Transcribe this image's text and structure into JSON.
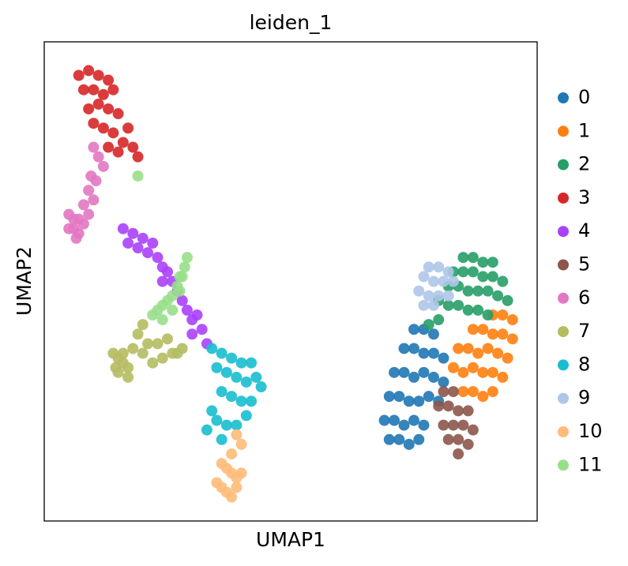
{
  "chart_data": {
    "type": "scatter",
    "title": "leiden_1",
    "x_label": "UMAP1",
    "y_label": "UMAP2",
    "xlim": [
      0,
      100
    ],
    "ylim": [
      0,
      100
    ],
    "series": [
      {
        "name": "0",
        "color": "#1f77b4",
        "x": [
          75,
          77,
          79,
          73,
          75,
          77,
          79,
          81,
          71,
          73,
          75,
          77,
          79,
          81,
          70,
          72,
          74,
          76,
          78,
          80,
          69,
          71,
          73,
          75,
          77,
          70,
          72,
          74,
          76
        ],
        "y": [
          40,
          40,
          39,
          36,
          36,
          35,
          35,
          34,
          31,
          31,
          30,
          31,
          30,
          29,
          26,
          26,
          25,
          25,
          26,
          25,
          21,
          21,
          20,
          21,
          20,
          17,
          17,
          16,
          17
        ]
      },
      {
        "name": "1",
        "color": "#ff7f0e",
        "x": [
          91,
          93,
          95,
          87,
          89,
          91,
          93,
          95,
          84,
          86,
          88,
          90,
          92,
          94,
          83,
          85,
          87,
          89,
          91,
          93,
          85,
          87,
          89,
          91
        ],
        "y": [
          43,
          43,
          42,
          40,
          40,
          39,
          39,
          38,
          36,
          36,
          35,
          36,
          35,
          34,
          32,
          31,
          32,
          31,
          31,
          30,
          27,
          27,
          26,
          27
        ]
      },
      {
        "name": "2",
        "color": "#279e68",
        "x": [
          85,
          87,
          89,
          91,
          83,
          85,
          87,
          89,
          91,
          93,
          82,
          84,
          86,
          88,
          90,
          92,
          94,
          80,
          82,
          84,
          86,
          88,
          90,
          78,
          80
        ],
        "y": [
          55,
          55,
          54,
          54,
          52,
          52,
          52,
          51,
          51,
          50,
          49,
          49,
          48,
          48,
          48,
          47,
          46,
          46,
          45,
          45,
          44,
          44,
          43,
          41,
          42
        ]
      },
      {
        "name": "3",
        "color": "#d62728",
        "x": [
          7,
          9,
          11,
          13,
          8,
          10,
          12,
          14,
          9,
          11,
          13,
          15,
          17,
          10,
          12,
          14,
          16,
          18,
          19,
          13,
          15
        ],
        "y": [
          93,
          94,
          93,
          92,
          90,
          90,
          89,
          90,
          86,
          87,
          86,
          85,
          82,
          83,
          82,
          81,
          79,
          78,
          76,
          78,
          77
        ]
      },
      {
        "name": "4",
        "color": "#aa40fc",
        "x": [
          16,
          18,
          20,
          22,
          17,
          19,
          21,
          23,
          24,
          25,
          26,
          27,
          24,
          28,
          29,
          30,
          31,
          32,
          30,
          33
        ],
        "y": [
          61,
          60,
          59,
          58,
          58,
          57,
          56,
          55,
          53,
          52,
          50,
          48,
          50,
          46,
          44,
          42,
          43,
          40,
          39,
          37
        ]
      },
      {
        "name": "5",
        "color": "#8c564b",
        "x": [
          81,
          83,
          80,
          82,
          84,
          86,
          81,
          83,
          85,
          87,
          82,
          84,
          86,
          84
        ],
        "y": [
          27,
          27,
          24,
          24,
          23,
          23,
          20,
          20,
          20,
          19,
          17,
          17,
          16,
          14
        ]
      },
      {
        "name": "6",
        "color": "#e377c2",
        "x": [
          10,
          11,
          12,
          9.5,
          10.5,
          9,
          10,
          8,
          9,
          5,
          6,
          7,
          8,
          5,
          6,
          7,
          6.5
        ],
        "y": [
          78,
          76,
          74,
          72,
          71,
          69,
          67,
          66,
          64,
          64,
          63,
          63,
          62,
          61,
          61,
          60,
          59
        ]
      },
      {
        "name": "7",
        "color": "#b5bd61",
        "x": [
          14,
          15,
          16,
          17,
          15,
          16,
          18,
          20,
          22,
          24,
          26,
          27,
          28,
          14.5,
          17,
          19,
          21,
          23,
          25,
          20
        ],
        "y": [
          35,
          34,
          33,
          32,
          31,
          35,
          36,
          35,
          33,
          34,
          35,
          35,
          36,
          32,
          30,
          39,
          37,
          37,
          38,
          41
        ]
      },
      {
        "name": "8",
        "color": "#17becf",
        "x": [
          34,
          36,
          38,
          40,
          42,
          43,
          35,
          37,
          39,
          41,
          44,
          36,
          38,
          40,
          42,
          34,
          35,
          37,
          39,
          41,
          33,
          36
        ],
        "y": [
          36,
          35,
          34,
          33,
          33,
          30,
          32,
          31,
          30,
          29,
          28,
          27,
          26,
          25,
          25,
          23,
          21,
          20,
          20,
          22,
          19,
          17
        ]
      },
      {
        "name": "9",
        "color": "#aec7e8",
        "x": [
          78,
          80,
          82,
          77,
          79,
          81,
          83,
          76,
          78,
          80,
          82,
          77,
          79
        ],
        "y": [
          53,
          53,
          52,
          51,
          50,
          50,
          50,
          48,
          47,
          47,
          47,
          45,
          45
        ]
      },
      {
        "name": "10",
        "color": "#ffbb78",
        "x": [
          39,
          40,
          38,
          36,
          37,
          38,
          39,
          40,
          35,
          36,
          37,
          38,
          39
        ],
        "y": [
          18,
          16,
          14,
          12,
          11,
          10,
          9,
          10,
          8,
          7,
          6,
          5,
          7
        ]
      },
      {
        "name": "11",
        "color": "#98df8a",
        "x": [
          29,
          28.5,
          27.5,
          27,
          26,
          25,
          24,
          23,
          22,
          24,
          26,
          27.5,
          28,
          19
        ],
        "y": [
          55,
          53,
          51,
          49,
          47,
          46,
          45,
          44,
          43,
          42,
          44,
          48,
          51,
          72
        ]
      }
    ]
  }
}
